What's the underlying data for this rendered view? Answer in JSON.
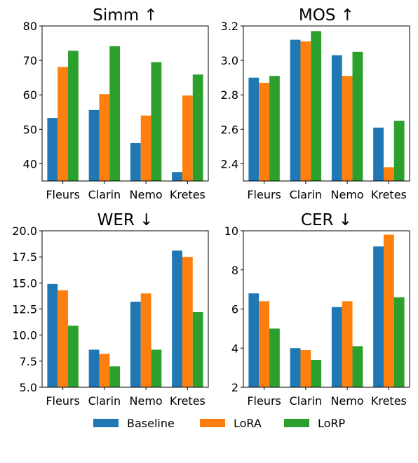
{
  "colors": {
    "Baseline": "#1f77b4",
    "LoRA": "#ff7f0e",
    "LoRP": "#2ca02c"
  },
  "legend": {
    "placement": "bottom-center",
    "items": [
      "Baseline",
      "LoRA",
      "LoRP"
    ]
  },
  "chart_data": [
    {
      "type": "bar",
      "title": "Simm ↑",
      "categories": [
        "Fleurs",
        "Clarin",
        "Nemo",
        "Kretes"
      ],
      "series": [
        {
          "name": "Baseline",
          "values": [
            53.3,
            55.6,
            46.0,
            37.6
          ]
        },
        {
          "name": "LoRA",
          "values": [
            68.1,
            60.2,
            54.0,
            59.8
          ]
        },
        {
          "name": "LoRP",
          "values": [
            72.8,
            74.1,
            69.5,
            65.9
          ]
        }
      ],
      "ylim": [
        35,
        80
      ],
      "yticks": [
        40,
        50,
        60,
        70,
        80
      ],
      "ytick_labels": [
        "40",
        "50",
        "60",
        "70",
        "80"
      ]
    },
    {
      "type": "bar",
      "title": "MOS ↑",
      "categories": [
        "Fleurs",
        "Clarin",
        "Nemo",
        "Kretes"
      ],
      "series": [
        {
          "name": "Baseline",
          "values": [
            2.9,
            3.12,
            3.03,
            2.61
          ]
        },
        {
          "name": "LoRA",
          "values": [
            2.87,
            3.11,
            2.91,
            2.38
          ]
        },
        {
          "name": "LoRP",
          "values": [
            2.91,
            3.17,
            3.05,
            2.65
          ]
        }
      ],
      "ylim": [
        2.3,
        3.2
      ],
      "yticks": [
        2.4,
        2.6,
        2.8,
        3.0,
        3.2
      ],
      "ytick_labels": [
        "2.4",
        "2.6",
        "2.8",
        "3.0",
        "3.2"
      ]
    },
    {
      "type": "bar",
      "title": "WER ↓",
      "categories": [
        "Fleurs",
        "Clarin",
        "Nemo",
        "Kretes"
      ],
      "series": [
        {
          "name": "Baseline",
          "values": [
            14.9,
            8.6,
            13.2,
            18.1
          ]
        },
        {
          "name": "LoRA",
          "values": [
            14.3,
            8.2,
            14.0,
            17.5
          ]
        },
        {
          "name": "LoRP",
          "values": [
            10.9,
            7.0,
            8.6,
            12.2
          ]
        }
      ],
      "ylim": [
        5.0,
        20.0
      ],
      "yticks": [
        5.0,
        7.5,
        10.0,
        12.5,
        15.0,
        17.5,
        20.0
      ],
      "ytick_labels": [
        "5.0",
        "7.5",
        "10.0",
        "12.5",
        "15.0",
        "17.5",
        "20.0"
      ]
    },
    {
      "type": "bar",
      "title": "CER ↓",
      "categories": [
        "Fleurs",
        "Clarin",
        "Nemo",
        "Kretes"
      ],
      "series": [
        {
          "name": "Baseline",
          "values": [
            6.8,
            4.0,
            6.1,
            9.2
          ]
        },
        {
          "name": "LoRA",
          "values": [
            6.4,
            3.9,
            6.4,
            9.8
          ]
        },
        {
          "name": "LoRP",
          "values": [
            5.0,
            3.4,
            4.1,
            6.6
          ]
        }
      ],
      "ylim": [
        2,
        10
      ],
      "yticks": [
        2,
        4,
        6,
        8,
        10
      ],
      "ytick_labels": [
        "2",
        "4",
        "6",
        "8",
        "10"
      ]
    }
  ]
}
